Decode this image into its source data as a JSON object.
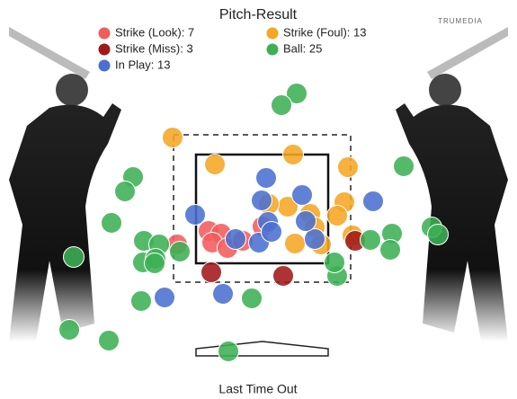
{
  "chart_data": {
    "type": "scatter",
    "title": "Pitch-Result",
    "logo_text": "TRUMEDIA",
    "caption": "Last Time Out",
    "xlim": [
      -29,
      28.5
    ],
    "ylim": [
      -5.4,
      39
    ],
    "series": [
      {
        "name": "Strike (Look): 7",
        "color": "#f25c5c",
        "x": [
          -5.8,
          -4.4,
          -5.4,
          -3.7,
          -2.0,
          0.2,
          -9.3
        ],
        "y": [
          13.3,
          13.0,
          12.0,
          11.4,
          12.2,
          13.8,
          11.8
        ]
      },
      {
        "name": "Strike (Foul): 13",
        "color": "#f5a623",
        "x": [
          -9.8,
          -5.1,
          3.6,
          9.7,
          3.0,
          0.9,
          5.5,
          9.3,
          8.5,
          6.0,
          3.8,
          10.2,
          6.7
        ],
        "y": [
          23.7,
          20.7,
          21.8,
          20.4,
          16.0,
          16.3,
          15.2,
          16.5,
          15.0,
          13.7,
          11.9,
          12.8,
          11.8
        ]
      },
      {
        "name": "Strike (Miss): 3",
        "color": "#a01818",
        "x": [
          -5.5,
          2.5,
          10.5
        ],
        "y": [
          8.7,
          8.3,
          12.2
        ]
      },
      {
        "name": "Ball: 25",
        "color": "#3cb054",
        "x": [
          4.0,
          2.3,
          -14.2,
          -15.1,
          -16.6,
          -13.0,
          -11.3,
          -13.1,
          -11.7,
          -20.8,
          15.9,
          14.6,
          12.2,
          14.4,
          19.0,
          19.7,
          8.5,
          -1.0,
          -13.3,
          -21.3,
          -16.9,
          -3.6,
          -9.0,
          8.2,
          -11.8
        ],
        "y": [
          28.6,
          27.3,
          19.3,
          17.7,
          14.2,
          12.2,
          11.8,
          9.8,
          10.2,
          10.4,
          20.5,
          13.0,
          12.3,
          11.2,
          13.7,
          12.9,
          8.3,
          5.8,
          5.5,
          2.3,
          1.1,
          -0.1,
          11.0,
          9.8,
          9.7
        ]
      },
      {
        "name": "In Play: 13",
        "color": "#4a6fd0",
        "x": [
          0.6,
          0.1,
          4.6,
          0.8,
          -7.3,
          -0.2,
          6.0,
          12.5,
          -4.2,
          -10.7,
          -2.8,
          1.2,
          5.0
        ],
        "y": [
          19.2,
          16.7,
          17.3,
          14.3,
          15.1,
          12.0,
          12.4,
          16.6,
          6.3,
          5.9,
          12.4,
          13.2,
          14.4
        ]
      }
    ]
  }
}
